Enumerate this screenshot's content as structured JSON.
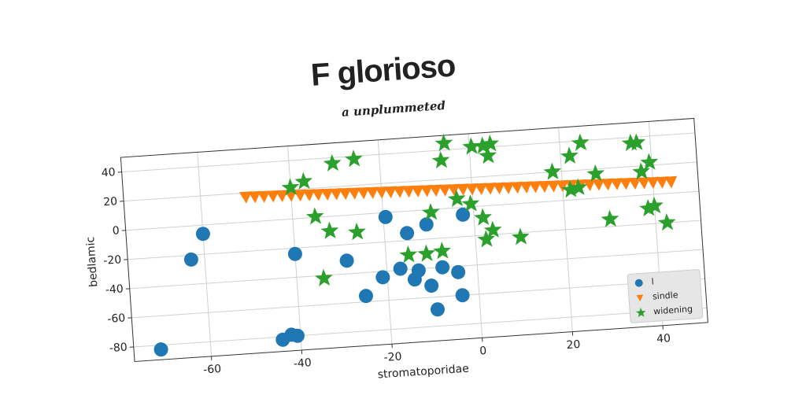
{
  "chart_data": {
    "type": "scatter",
    "title": "F glorioso",
    "subtitle": "a unplummeted",
    "xlabel": "stromatoporidae",
    "ylabel": "bedlamic",
    "xlim": [
      -77,
      50
    ],
    "ylim": [
      -90,
      50
    ],
    "xticks": [
      -60,
      -40,
      -20,
      0,
      20,
      40
    ],
    "yticks": [
      -80,
      -60,
      -40,
      -20,
      0,
      20,
      40
    ],
    "grid": true,
    "legend": "lower right",
    "series": [
      {
        "name": "l",
        "color": "#1f77b4",
        "marker": "circle",
        "x": [
          -71,
          -63,
          -60,
          -40,
          -44,
          -42,
          -40.7,
          -28.7,
          -25,
          -21,
          -19.5,
          -17,
          -15,
          -14,
          -13,
          -10.4,
          -10.6,
          -9.4,
          -7.7,
          -4.3,
          -3.7,
          -2.4
        ],
        "values": [
          -83,
          -23,
          -6,
          -24,
          -82,
          -79,
          -80,
          -31,
          -56,
          -44,
          -3,
          -39,
          -15,
          -47,
          -41,
          -52,
          -10,
          -68.5,
          -40,
          -44,
          -60,
          -5
        ]
      },
      {
        "name": "sindle",
        "color": "#ff7f0e",
        "marker": "triangle",
        "x": [
          -50,
          -48,
          -46,
          -44,
          -42,
          -40,
          -38,
          -36,
          -34,
          -32,
          -30,
          -28,
          -26,
          -24,
          -22,
          -20,
          -18,
          -16,
          -14,
          -12,
          -10,
          -8,
          -6,
          -4,
          -2,
          0,
          2,
          4,
          6,
          8,
          10,
          12,
          14,
          16,
          18,
          20,
          22,
          24,
          26,
          28,
          30,
          32,
          34,
          36,
          38,
          40,
          42,
          44
        ],
        "values": [
          17.0,
          16.8,
          16.6,
          16.4,
          16.2,
          16.0,
          15.8,
          15.6,
          15.4,
          15.2,
          15.0,
          14.8,
          14.6,
          14.4,
          14.2,
          14.0,
          13.8,
          13.6,
          13.4,
          13.2,
          13.0,
          12.8,
          12.6,
          12.4,
          12.2,
          12.0,
          11.8,
          11.6,
          11.4,
          11.2,
          11.0,
          10.8,
          10.6,
          10.4,
          10.2,
          10.0,
          9.8,
          9.6,
          9.4,
          9.2,
          9.0,
          8.8,
          8.6,
          8.4,
          8.2,
          8.0,
          7.8,
          7.6
        ]
      },
      {
        "name": "widening",
        "color": "#2ca02c",
        "marker": "star",
        "x": [
          -40,
          -37,
          -35,
          -32,
          -34,
          -30.4,
          -25.6,
          -26,
          -15,
          -11,
          -7.5,
          -9.4,
          -5.5,
          -6.4,
          -3.5,
          -0.5,
          0.5,
          3,
          4.7,
          4,
          2,
          2.4,
          4,
          10,
          18,
          22,
          24.6,
          21.7,
          23.5,
          27.5,
          30,
          35.7,
          37,
          37.6,
          39.5,
          38.6,
          40,
          42.5
        ],
        "values": [
          21.5,
          25,
          0.5,
          -10,
          -42,
          36,
          38,
          -12,
          -30,
          -30,
          -29,
          -2,
          44.6,
          33,
          6,
          2,
          41,
          41,
          42,
          34,
          -8,
          -23,
          -17,
          -23,
          20,
          30,
          38.5,
          7,
          8,
          16.7,
          -15,
          36,
          36,
          16,
          22,
          -9.4,
          -8,
          -20
        ]
      }
    ]
  }
}
